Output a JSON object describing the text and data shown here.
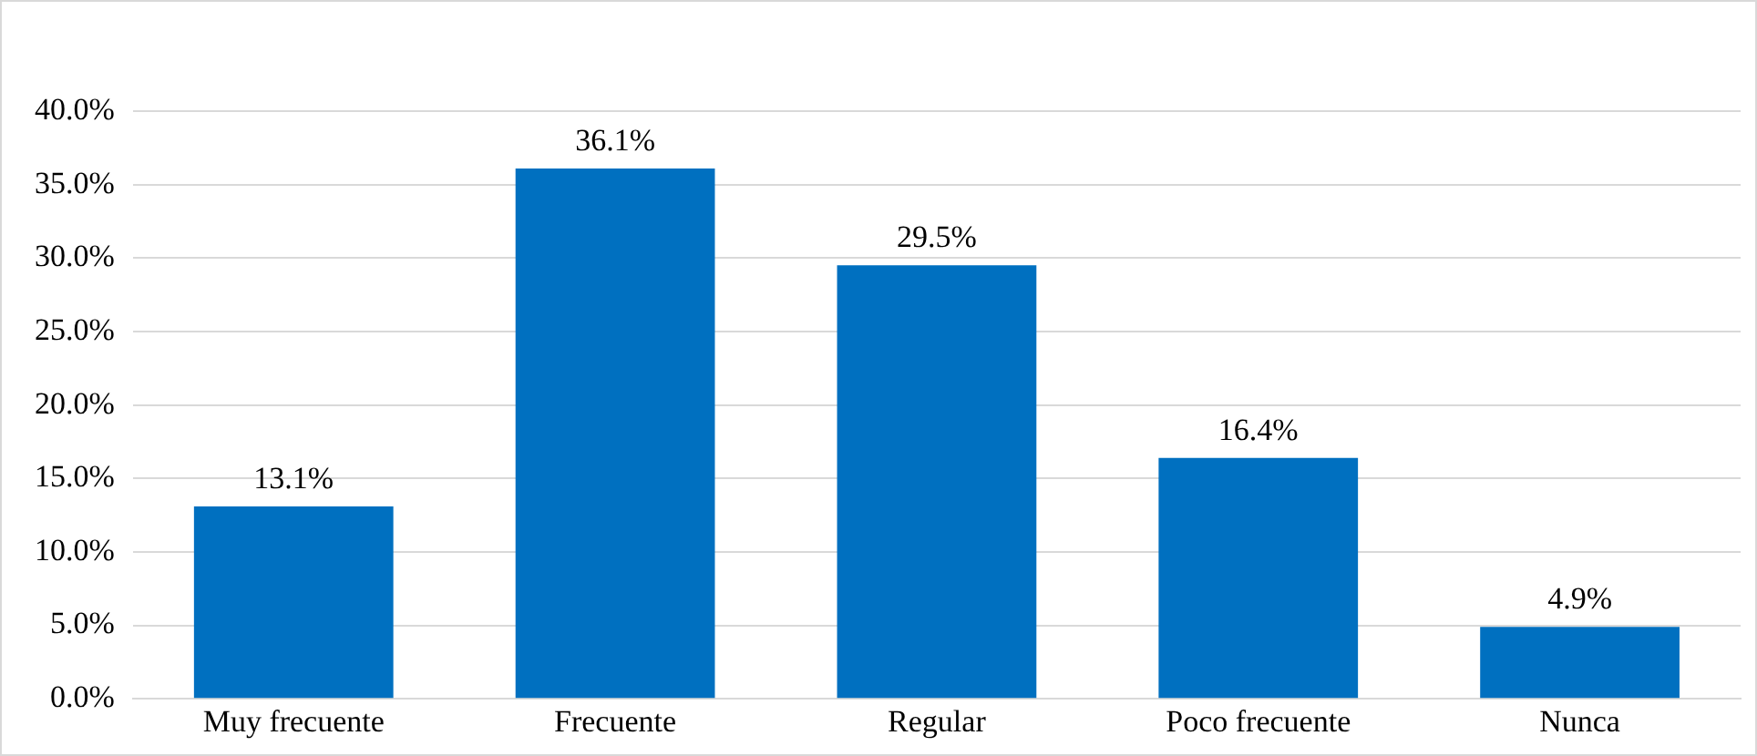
{
  "chart_data": {
    "type": "bar",
    "categories": [
      "Muy frecuente",
      "Frecuente",
      "Regular",
      "Poco frecuente",
      "Nunca"
    ],
    "values": [
      13.1,
      36.1,
      29.5,
      16.4,
      4.9
    ],
    "value_labels": [
      "13.1%",
      "36.1%",
      "29.5%",
      "16.4%",
      "4.9%"
    ],
    "color": "#0070c0",
    "ylim": [
      0,
      40
    ],
    "yticks": [
      {
        "value": 0,
        "label": "0.0%"
      },
      {
        "value": 5,
        "label": "5.0%"
      },
      {
        "value": 10,
        "label": "10.0%"
      },
      {
        "value": 15,
        "label": "15.0%"
      },
      {
        "value": 20,
        "label": "20.0%"
      },
      {
        "value": 25,
        "label": "25.0%"
      },
      {
        "value": 30,
        "label": "30.0%"
      },
      {
        "value": 35,
        "label": "35.0%"
      },
      {
        "value": 40,
        "label": "40.0%"
      }
    ],
    "grid": "y",
    "legend": false
  }
}
